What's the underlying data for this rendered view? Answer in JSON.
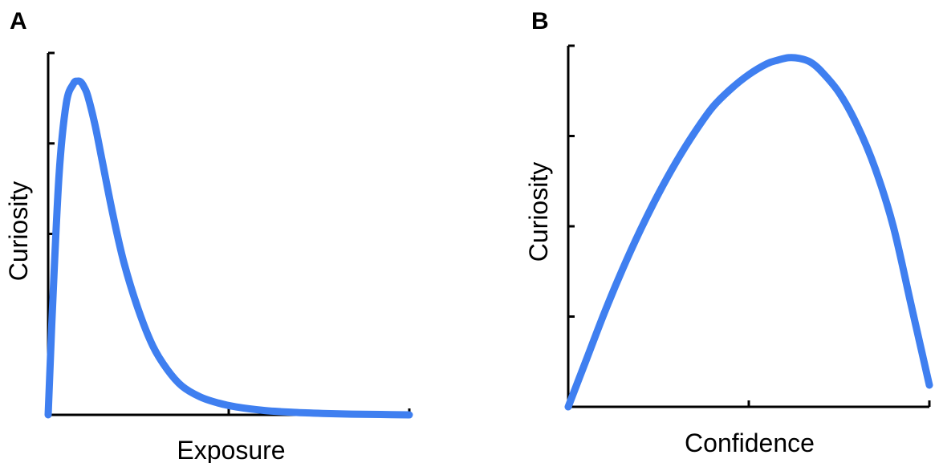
{
  "chart_data": [
    {
      "type": "line",
      "panel_label": "A",
      "title": "",
      "xlabel": "Exposure",
      "ylabel": "Curiosity",
      "xlim": [
        0,
        1
      ],
      "ylim": [
        0,
        1
      ],
      "xticks": [
        0,
        0.5,
        1
      ],
      "yticks": [
        0,
        0.25,
        0.5,
        0.75,
        1
      ],
      "grid": false,
      "color": "#3f7ff0",
      "series": [
        {
          "x": [
            0.0,
            0.01,
            0.03,
            0.05,
            0.07,
            0.08,
            0.09,
            0.1,
            0.11,
            0.13,
            0.15,
            0.18,
            0.21,
            0.25,
            0.29,
            0.33,
            0.37,
            0.42,
            0.47,
            0.52,
            0.6,
            0.68,
            0.76,
            0.84,
            0.92,
            1.0
          ],
          "y": [
            0.0,
            0.25,
            0.66,
            0.86,
            0.915,
            0.922,
            0.92,
            0.905,
            0.88,
            0.8,
            0.7,
            0.55,
            0.42,
            0.29,
            0.19,
            0.125,
            0.08,
            0.05,
            0.033,
            0.022,
            0.012,
            0.007,
            0.004,
            0.002,
            0.001,
            0.0
          ]
        }
      ]
    },
    {
      "type": "line",
      "panel_label": "B",
      "title": "",
      "xlabel": "Confidence",
      "ylabel": "Curiosity",
      "xlim": [
        0,
        1
      ],
      "ylim": [
        0,
        1
      ],
      "xticks": [
        0,
        0.5,
        1
      ],
      "yticks": [
        0,
        0.25,
        0.5,
        0.75,
        1
      ],
      "grid": false,
      "color": "#3f7ff0",
      "series": [
        {
          "x": [
            0.0,
            0.05,
            0.1,
            0.15,
            0.2,
            0.25,
            0.3,
            0.35,
            0.4,
            0.45,
            0.5,
            0.55,
            0.58,
            0.61,
            0.64,
            0.67,
            0.7,
            0.75,
            0.8,
            0.85,
            0.9,
            0.95,
            1.0
          ],
          "y": [
            0.0,
            0.13,
            0.26,
            0.38,
            0.49,
            0.59,
            0.68,
            0.76,
            0.83,
            0.88,
            0.92,
            0.95,
            0.96,
            0.967,
            0.965,
            0.955,
            0.93,
            0.87,
            0.78,
            0.66,
            0.5,
            0.28,
            0.06
          ]
        }
      ]
    }
  ]
}
